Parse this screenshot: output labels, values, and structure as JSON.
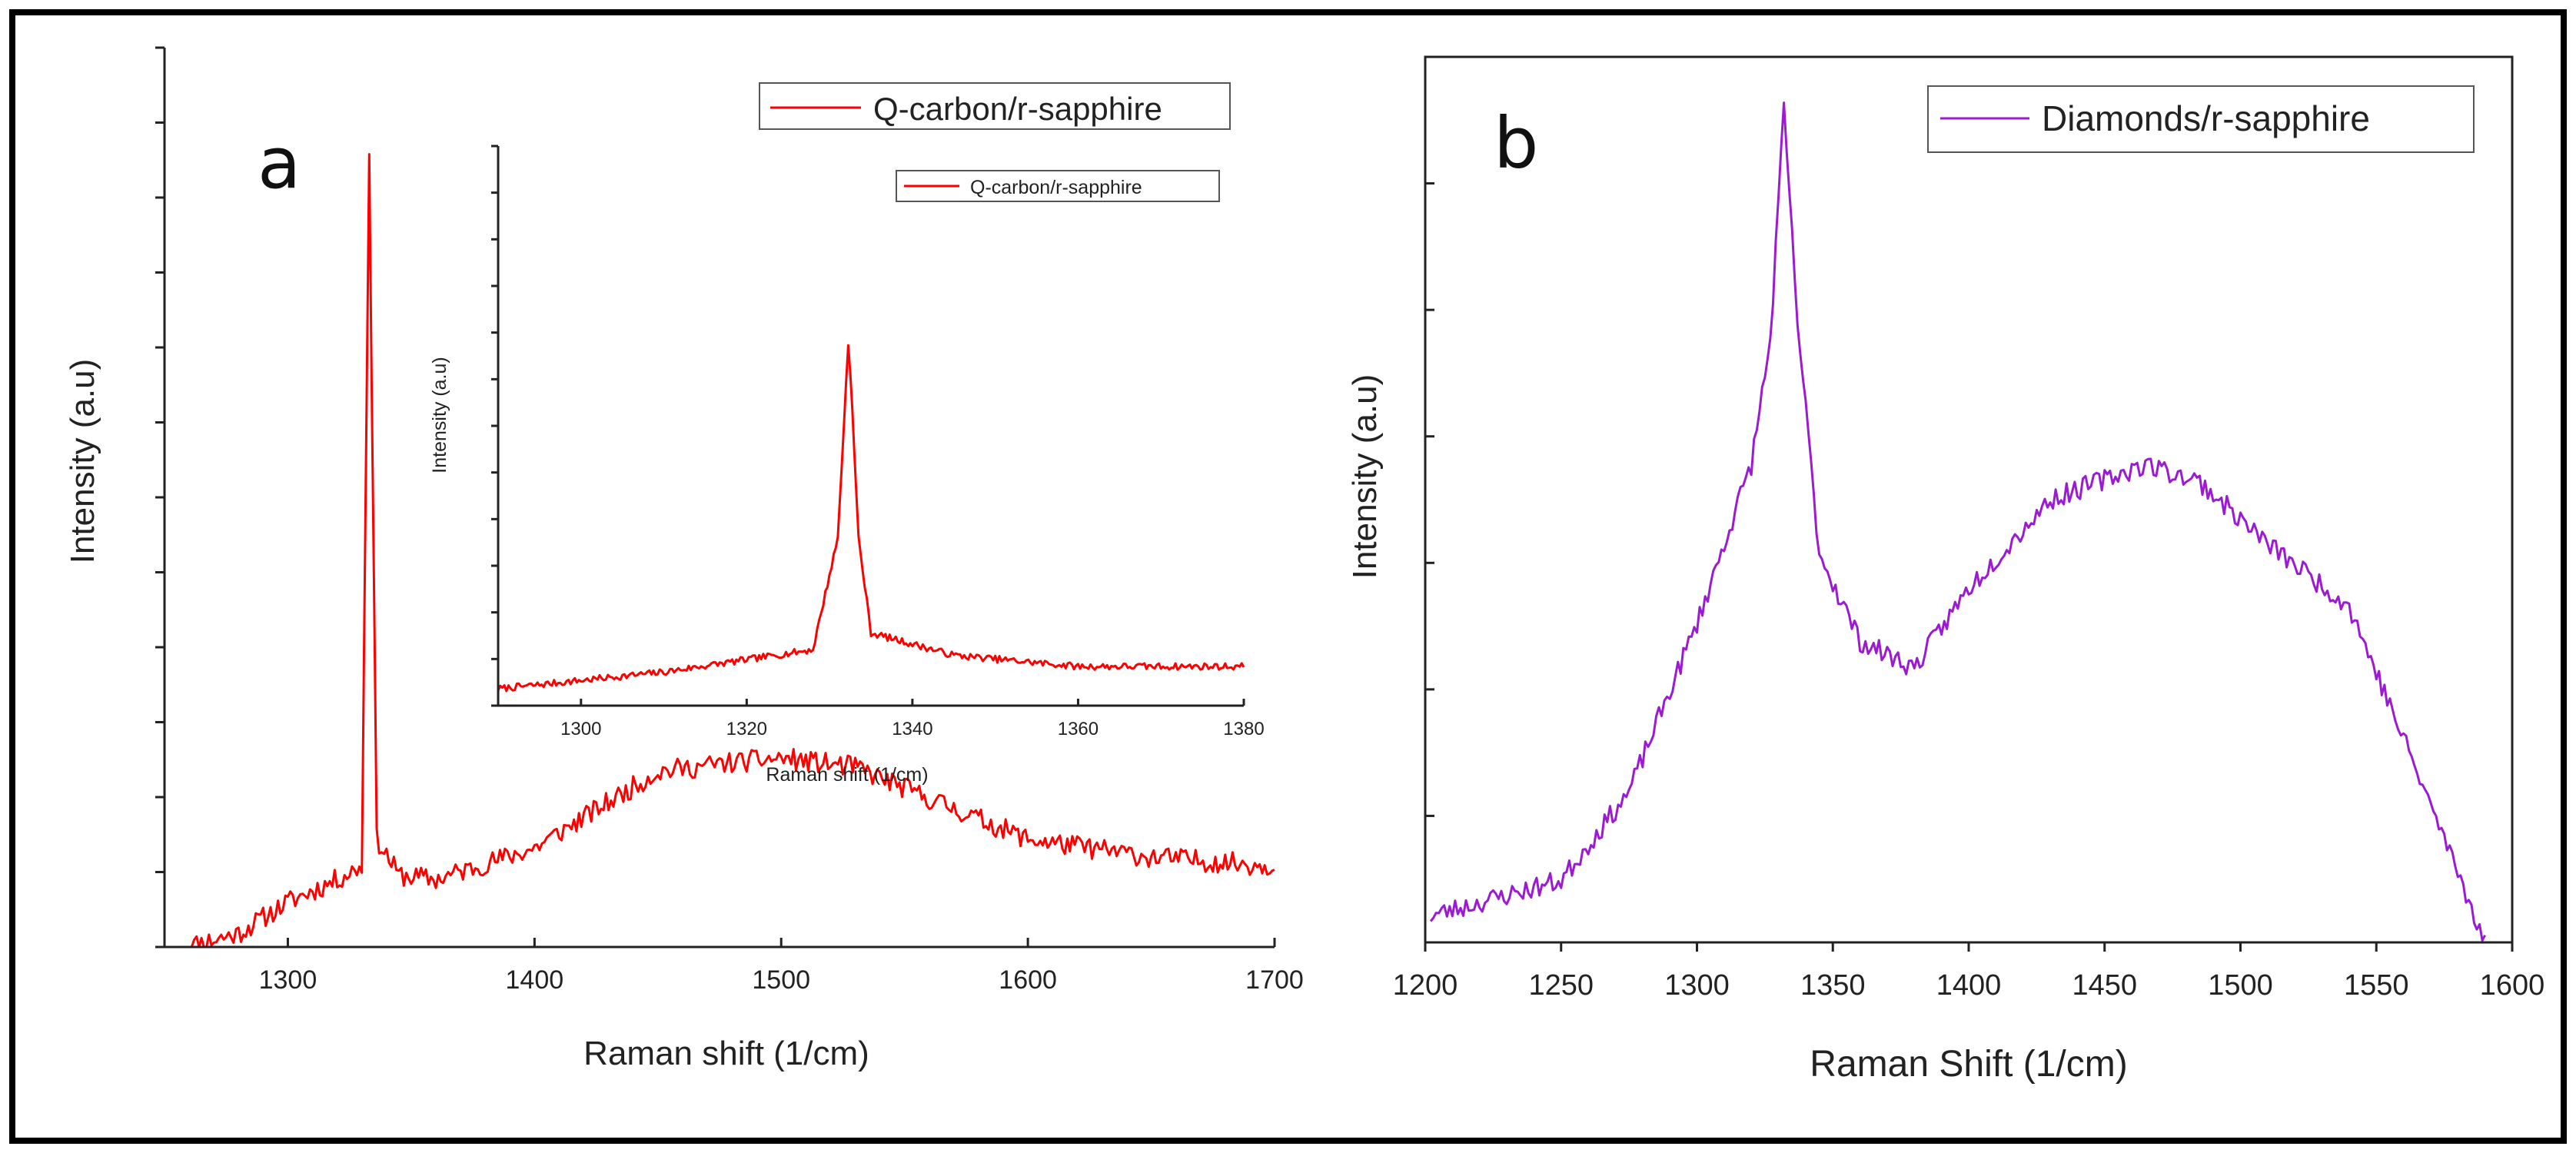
{
  "figure": {
    "background": "#ffffff",
    "frame_color": "#000000"
  },
  "colors": {
    "series_a": "#ff0000",
    "series_b": "#9a1bd1",
    "axis": "#222222",
    "text": "#222222"
  },
  "chart_data": [
    {
      "id": "a",
      "type": "line",
      "panel_letter": "a",
      "xlabel": "Raman shift (1/cm)",
      "ylabel": "Intensity (a.u)",
      "xlim": [
        1250,
        1700
      ],
      "ylim": [
        0,
        1
      ],
      "x_ticks": [
        1300,
        1400,
        1500,
        1600,
        1700
      ],
      "x_tick_labels": [
        "1300",
        "1400",
        "1500",
        "1600",
        "1700"
      ],
      "y_tick_labels_shown": false,
      "legend": {
        "label": "Q-carbon/r-sapphire",
        "position": "top-right"
      },
      "series": [
        {
          "name": "Q-carbon/r-sapphire",
          "color": "#ff0000",
          "noise": 0.012,
          "seed": 11,
          "x_step": 1,
          "profile": [
            {
              "x": 1258,
              "y": 0.0
            },
            {
              "x": 1280,
              "y": 0.015
            },
            {
              "x": 1300,
              "y": 0.05
            },
            {
              "x": 1320,
              "y": 0.075
            },
            {
              "x": 1330,
              "y": 0.09
            },
            {
              "x": 1333,
              "y": 0.89
            },
            {
              "x": 1336,
              "y": 0.12
            },
            {
              "x": 1345,
              "y": 0.08
            },
            {
              "x": 1360,
              "y": 0.075
            },
            {
              "x": 1400,
              "y": 0.11
            },
            {
              "x": 1450,
              "y": 0.195
            },
            {
              "x": 1480,
              "y": 0.205
            },
            {
              "x": 1500,
              "y": 0.21
            },
            {
              "x": 1530,
              "y": 0.2
            },
            {
              "x": 1560,
              "y": 0.165
            },
            {
              "x": 1600,
              "y": 0.12
            },
            {
              "x": 1650,
              "y": 0.1
            },
            {
              "x": 1700,
              "y": 0.09
            }
          ]
        }
      ]
    },
    {
      "id": "a-inset",
      "type": "line",
      "xlabel": "Raman shift (1/cm)",
      "ylabel": "Intensity (a.u)",
      "xlim": [
        1290,
        1380
      ],
      "ylim": [
        0,
        1
      ],
      "x_ticks": [
        1300,
        1320,
        1340,
        1360,
        1380
      ],
      "x_tick_labels": [
        "1300",
        "1320",
        "1340",
        "1360",
        "1380"
      ],
      "y_tick_labels_shown": false,
      "legend": {
        "label": "Q-carbon/r-sapphire",
        "position": "top-right"
      },
      "series": [
        {
          "name": "Q-carbon/r-sapphire",
          "color": "#ff0000",
          "noise": 0.006,
          "seed": 7,
          "x_step": 0.25,
          "profile": [
            {
              "x": 1290,
              "y": 0.03
            },
            {
              "x": 1310,
              "y": 0.06
            },
            {
              "x": 1328,
              "y": 0.1
            },
            {
              "x": 1331,
              "y": 0.3
            },
            {
              "x": 1332.3,
              "y": 0.66
            },
            {
              "x": 1333.5,
              "y": 0.3
            },
            {
              "x": 1335,
              "y": 0.13
            },
            {
              "x": 1345,
              "y": 0.09
            },
            {
              "x": 1360,
              "y": 0.07
            },
            {
              "x": 1380,
              "y": 0.07
            }
          ]
        }
      ]
    },
    {
      "id": "b",
      "type": "line",
      "panel_letter": "b",
      "xlabel": "Raman Shift (1/cm)",
      "ylabel": "Intensity (a.u)",
      "xlim": [
        1200,
        1600
      ],
      "ylim": [
        0,
        1
      ],
      "x_ticks": [
        1200,
        1250,
        1300,
        1350,
        1400,
        1450,
        1500,
        1550,
        1600
      ],
      "x_tick_labels": [
        "1200",
        "1250",
        "1300",
        "1350",
        "1400",
        "1450",
        "1500",
        "1550",
        "1600"
      ],
      "y_tick_labels_shown": false,
      "legend": {
        "label": "Diamonds/r-sapphire",
        "position": "top-right"
      },
      "series": [
        {
          "name": "Diamonds/r-sapphire",
          "color": "#9a1bd1",
          "noise": 0.012,
          "seed": 23,
          "x_step": 1,
          "profile": [
            {
              "x": 1202,
              "y": 0.03
            },
            {
              "x": 1250,
              "y": 0.07
            },
            {
              "x": 1275,
              "y": 0.17
            },
            {
              "x": 1300,
              "y": 0.36
            },
            {
              "x": 1320,
              "y": 0.54
            },
            {
              "x": 1327,
              "y": 0.68
            },
            {
              "x": 1332,
              "y": 0.94
            },
            {
              "x": 1337,
              "y": 0.7
            },
            {
              "x": 1345,
              "y": 0.44
            },
            {
              "x": 1360,
              "y": 0.34
            },
            {
              "x": 1380,
              "y": 0.31
            },
            {
              "x": 1400,
              "y": 0.4
            },
            {
              "x": 1430,
              "y": 0.5
            },
            {
              "x": 1465,
              "y": 0.54
            },
            {
              "x": 1485,
              "y": 0.52
            },
            {
              "x": 1510,
              "y": 0.45
            },
            {
              "x": 1540,
              "y": 0.38
            },
            {
              "x": 1560,
              "y": 0.23
            },
            {
              "x": 1580,
              "y": 0.08
            },
            {
              "x": 1590,
              "y": 0.0
            }
          ]
        }
      ]
    }
  ]
}
